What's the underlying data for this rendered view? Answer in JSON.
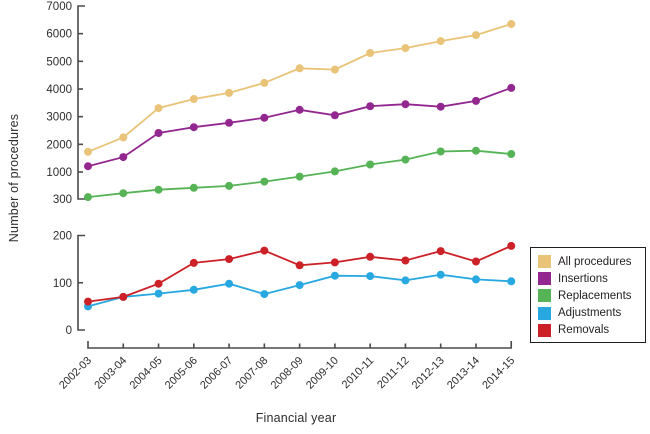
{
  "chart_data": {
    "type": "line",
    "xlabel": "Financial year",
    "ylabel": "Number of procedures",
    "categories": [
      "2002-03",
      "2003-04",
      "2004-05",
      "2005-06",
      "2006-07",
      "2007-08",
      "2008-09",
      "2009-10",
      "2010-11",
      "2011-12",
      "2012-13",
      "2013-14",
      "2014-15"
    ],
    "series": [
      {
        "name": "All procedures",
        "color": "#E9C377",
        "panel": "top",
        "values": [
          1730,
          2250,
          3310,
          3640,
          3860,
          4220,
          4750,
          4700,
          5300,
          5480,
          5730,
          5950,
          6350
        ]
      },
      {
        "name": "Insertions",
        "color": "#92278F",
        "panel": "top",
        "values": [
          1210,
          1540,
          2410,
          2620,
          2780,
          2960,
          3250,
          3050,
          3380,
          3450,
          3360,
          3570,
          4040
        ]
      },
      {
        "name": "Replacements",
        "color": "#56B356",
        "panel": "top",
        "values": [
          350,
          450,
          540,
          590,
          640,
          750,
          880,
          1020,
          1270,
          1450,
          1740,
          1770,
          1650
        ]
      },
      {
        "name": "Adjustments",
        "color": "#28A8E0",
        "panel": "bottom",
        "values": [
          50,
          70,
          77,
          85,
          98,
          76,
          95,
          115,
          114,
          105,
          117,
          107,
          103
        ]
      },
      {
        "name": "Removals",
        "color": "#CC2127",
        "panel": "bottom",
        "values": [
          60,
          70,
          98,
          142,
          150,
          168,
          137,
          143,
          155,
          147,
          167,
          145,
          178
        ]
      }
    ],
    "axes": {
      "broken_axis": true,
      "top_panel": {
        "range": [
          300,
          7000
        ],
        "ticks": [
          300,
          1000,
          2000,
          3000,
          4000,
          5000,
          6000,
          7000
        ]
      },
      "bottom_panel": {
        "range": [
          0,
          200
        ],
        "ticks": [
          0,
          100,
          200
        ]
      }
    },
    "legend": {
      "position": "right-bottom",
      "entries": [
        "All procedures",
        "Insertions",
        "Replacements",
        "Adjustments",
        "Removals"
      ]
    },
    "grid": false
  },
  "colors": {
    "axis": "#4b4b4b",
    "tick_text": "#2e2d2c",
    "background": "#ffffff"
  }
}
